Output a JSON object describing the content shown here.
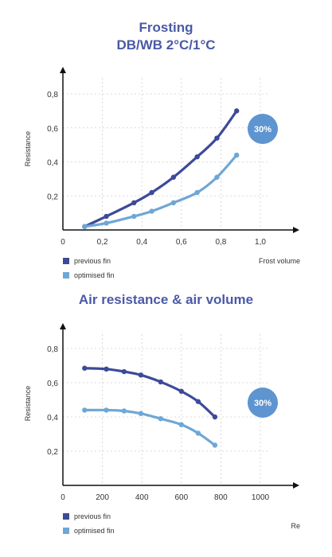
{
  "colors": {
    "previous": "#3d4a99",
    "optimised": "#6ea7d6",
    "badge": "#5e94d0",
    "title": "#4a5aa6",
    "grid": "#cfcfcf",
    "axis": "#111111"
  },
  "chart_data": [
    {
      "type": "line",
      "title": "Frosting\nDB/WB 2°C/1°C",
      "title_lines": [
        "Frosting",
        "DB/WB 2°C/1°C"
      ],
      "xlabel": "Frost volume",
      "ylabel": "Resistance",
      "xlim": [
        0,
        1.0
      ],
      "ylim": [
        0,
        0.8
      ],
      "xticks": [
        0,
        0.2,
        0.4,
        0.6,
        0.8,
        1.0
      ],
      "xtick_labels": [
        "0",
        "0,2",
        "0,4",
        "0,6",
        "0,8",
        "1,0"
      ],
      "yticks": [
        0.2,
        0.4,
        0.6,
        0.8
      ],
      "ytick_labels": [
        "0,2",
        "0,4",
        "0,6",
        "0,8"
      ],
      "badge": "30%",
      "grid": true,
      "legend_position": "bottom-left",
      "series": [
        {
          "name": "previous fin",
          "color_key": "previous",
          "x": [
            0.11,
            0.22,
            0.36,
            0.45,
            0.56,
            0.68,
            0.78,
            0.88
          ],
          "y": [
            0.02,
            0.08,
            0.16,
            0.22,
            0.31,
            0.43,
            0.54,
            0.7
          ]
        },
        {
          "name": "optimised fin",
          "color_key": "optimised",
          "x": [
            0.11,
            0.22,
            0.36,
            0.45,
            0.56,
            0.68,
            0.78,
            0.88
          ],
          "y": [
            0.02,
            0.04,
            0.08,
            0.11,
            0.16,
            0.22,
            0.31,
            0.44
          ]
        }
      ]
    },
    {
      "type": "line",
      "title": "Air resistance & air volume",
      "title_lines": [
        "Air resistance & air volume"
      ],
      "xlabel": "Re",
      "ylabel": "Resistance",
      "xlim": [
        0,
        1000
      ],
      "ylim": [
        0,
        0.8
      ],
      "xticks": [
        0,
        200,
        400,
        600,
        800,
        1000
      ],
      "xtick_labels": [
        "0",
        "200",
        "400",
        "600",
        "800",
        "1000"
      ],
      "yticks": [
        0.2,
        0.4,
        0.6,
        0.8
      ],
      "ytick_labels": [
        "0,2",
        "0,4",
        "0,6",
        "0,8"
      ],
      "badge": "30%",
      "grid": true,
      "legend_position": "bottom-left",
      "series": [
        {
          "name": "previous fin",
          "color_key": "previous",
          "x": [
            110,
            220,
            310,
            395,
            495,
            600,
            685,
            770
          ],
          "y": [
            0.685,
            0.68,
            0.665,
            0.645,
            0.605,
            0.55,
            0.49,
            0.4
          ]
        },
        {
          "name": "optimised fin",
          "color_key": "optimised",
          "x": [
            110,
            220,
            310,
            395,
            495,
            600,
            685,
            770
          ],
          "y": [
            0.44,
            0.44,
            0.435,
            0.42,
            0.39,
            0.355,
            0.305,
            0.235
          ]
        }
      ]
    }
  ]
}
